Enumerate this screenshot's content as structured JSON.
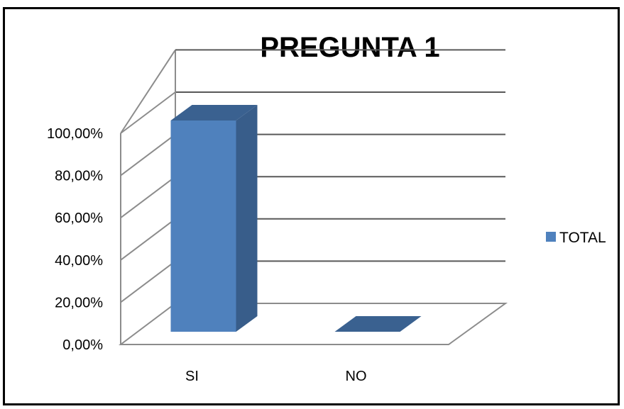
{
  "chart_data": {
    "type": "bar",
    "title": "PREGUNTA 1",
    "categories": [
      "SI",
      "NO"
    ],
    "series": [
      {
        "name": "TOTAL",
        "values": [
          100,
          0
        ],
        "color": "#4F81BD"
      }
    ],
    "y_ticks": [
      "0,00%",
      "20,00%",
      "40,00%",
      "60,00%",
      "80,00%",
      "100,00%"
    ],
    "ylim": [
      0,
      100
    ],
    "grid": true,
    "legend": "right",
    "style": "3d-column"
  }
}
